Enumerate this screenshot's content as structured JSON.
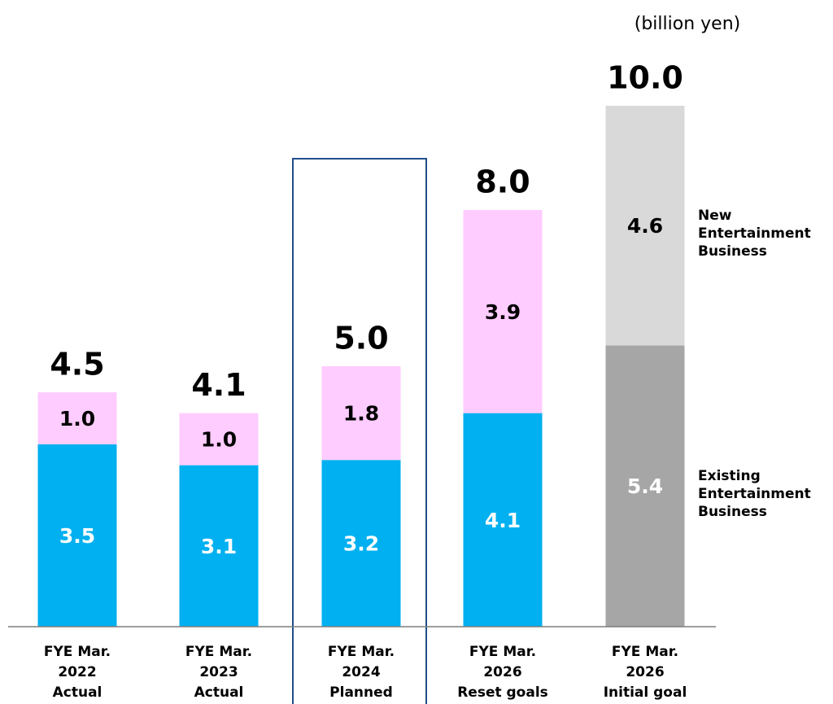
{
  "chart_data": {
    "type": "stacked_bar",
    "unit_label": "(billion yen)",
    "categories": [
      [
        "FYE Mar.",
        "2022",
        "Actual"
      ],
      [
        "FYE Mar.",
        "2023",
        "Actual"
      ],
      [
        "FYE Mar.",
        "2024",
        "Planned"
      ],
      [
        "FYE Mar.",
        "2026",
        "Reset goals"
      ],
      [
        "FYE Mar.",
        "2026",
        "Initial goal"
      ]
    ],
    "series": [
      {
        "name": "Existing Entertainment Business",
        "values": [
          3.5,
          3.1,
          3.2,
          4.1,
          5.4
        ],
        "value_labels": [
          "3.5",
          "3.1",
          "3.2",
          "4.1",
          "5.4"
        ],
        "colors": [
          "#00b0f0",
          "#00b0f0",
          "#00b0f0",
          "#00b0f0",
          "#a6a6a6"
        ],
        "label_color": "#ffffff"
      },
      {
        "name": "New Entertainment Business",
        "values": [
          1.0,
          1.0,
          1.8,
          3.9,
          4.6
        ],
        "value_labels": [
          "1.0",
          "1.0",
          "1.8",
          "3.9",
          "4.6"
        ],
        "colors": [
          "#ffccff",
          "#ffccff",
          "#ffccff",
          "#ffccff",
          "#d9d9d9"
        ],
        "label_color": "#000000"
      }
    ],
    "totals": [
      4.5,
      4.1,
      5.0,
      8.0,
      10.0
    ],
    "total_labels": [
      "4.5",
      "4.1",
      "5.0",
      "8.0",
      "10.0"
    ],
    "ylim": [
      0,
      10
    ]
  }
}
